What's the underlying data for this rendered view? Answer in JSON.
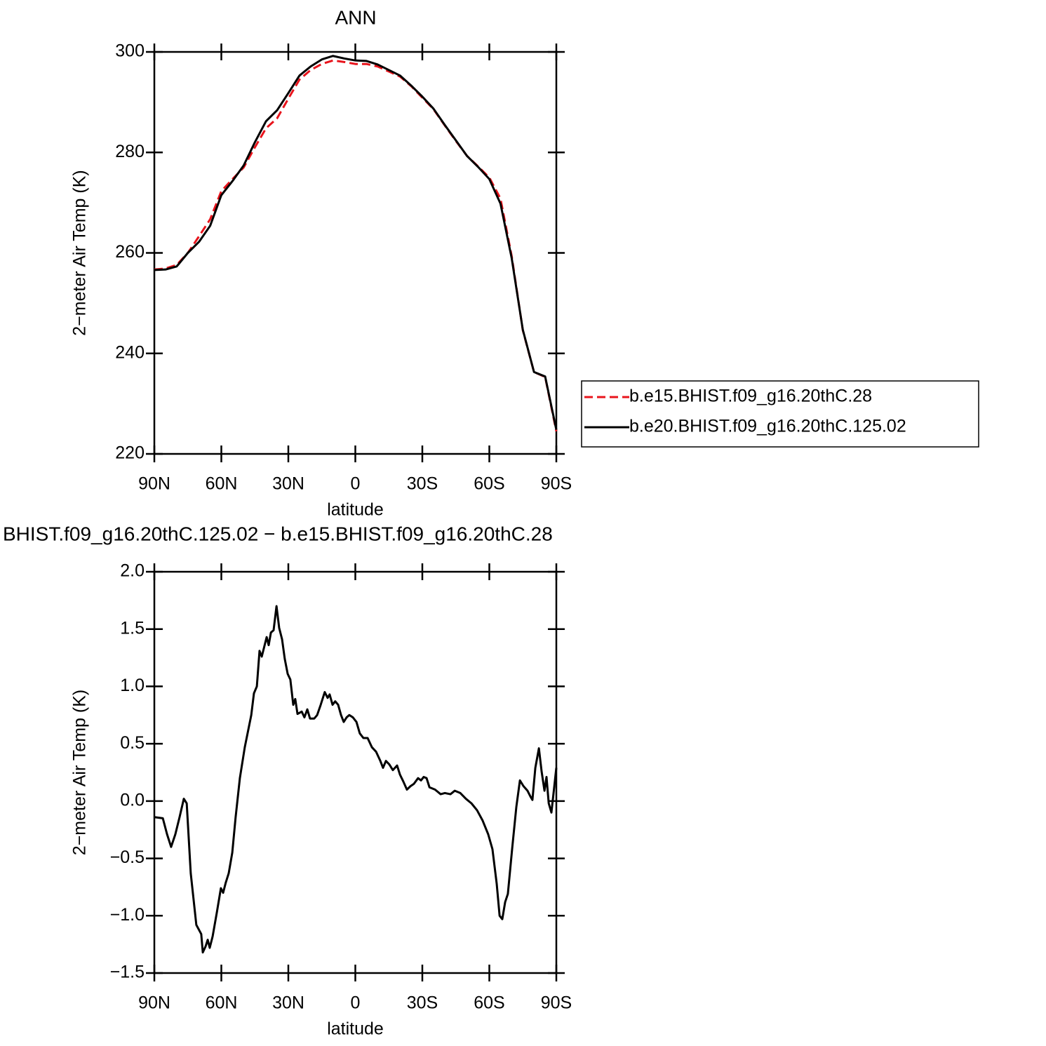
{
  "chart_data": [
    {
      "type": "line",
      "title": "ANN",
      "xlabel": "latitude",
      "ylabel": "2−meter Air Temp (K)",
      "x": [
        90,
        85,
        80,
        75,
        70,
        65,
        60,
        55,
        50,
        45,
        40,
        35,
        30,
        25,
        20,
        15,
        10,
        5,
        0,
        -5,
        -10,
        -15,
        -20,
        -25,
        -30,
        -35,
        -40,
        -45,
        -50,
        -55,
        -60,
        -65,
        -70,
        -75,
        -80,
        -85,
        -90
      ],
      "series": [
        {
          "name": "b.e15.BHIST.f09_g16.20thC.28",
          "color": "#e8141c",
          "dash": true,
          "values": [
            256.7,
            256.9,
            257.6,
            260.0,
            263.3,
            266.7,
            272.3,
            274.7,
            277.0,
            281.0,
            284.8,
            286.8,
            290.7,
            294.5,
            296.4,
            297.6,
            298.3,
            298.0,
            297.6,
            297.6,
            297.1,
            296.1,
            295.1,
            293.2,
            290.9,
            288.6,
            285.4,
            282.3,
            279.3,
            277.2,
            275.0,
            270.8,
            259.4,
            244.6,
            236.3,
            235.3,
            224.5
          ]
        },
        {
          "name": "b.e20.BHIST.f09_g16.20thC.125.02",
          "color": "#000000",
          "dash": false,
          "values": [
            256.6,
            256.7,
            257.3,
            260.0,
            262.2,
            265.4,
            271.5,
            274.3,
            277.4,
            282.0,
            286.2,
            288.4,
            291.8,
            295.3,
            297.1,
            298.5,
            299.2,
            298.7,
            298.3,
            298.2,
            297.5,
            296.4,
            295.3,
            293.3,
            291.1,
            288.7,
            285.5,
            282.4,
            279.3,
            277.1,
            274.7,
            269.8,
            259.0,
            244.7,
            236.3,
            235.4,
            224.8
          ]
        }
      ],
      "xlim": [
        90,
        -90
      ],
      "xticks": [
        {
          "value": 90,
          "label": "90N"
        },
        {
          "value": 60,
          "label": "60N"
        },
        {
          "value": 30,
          "label": "30N"
        },
        0,
        {
          "value": -30,
          "label": "30S"
        },
        {
          "value": -60,
          "label": "60S"
        },
        {
          "value": -90,
          "label": "90S"
        }
      ],
      "ylim": [
        220,
        300
      ],
      "yticks": [
        220,
        240,
        260,
        280,
        300
      ],
      "legend": "right"
    },
    {
      "type": "line",
      "title": "BHIST.f09_g16.20thC.125.02 − b.e15.BHIST.f09_g16.20thC.28",
      "xlabel": "latitude",
      "ylabel": "2−meter Air Temp (K)",
      "x": [
        90,
        86.2,
        84.3,
        82.5,
        80.6,
        78.7,
        76.8,
        75.5,
        73.7,
        71.2,
        69,
        68.3,
        67.1,
        66.1,
        65.2,
        63.9,
        62,
        60.2,
        59.2,
        58,
        56.7,
        55.1,
        53.6,
        51.7,
        49.5,
        46.6,
        45.4,
        44.1,
        42.9,
        41.9,
        39.7,
        38.8,
        37.8,
        36.6,
        35.3,
        34.1,
        32.8,
        31.6,
        30.3,
        29.1,
        27.8,
        26.9,
        25.9,
        24,
        22.8,
        21.5,
        20.3,
        18.4,
        17.1,
        15.5,
        13.7,
        12.4,
        11.5,
        10.2,
        9,
        7.7,
        6.4,
        5.2,
        3.9,
        2.7,
        1.1,
        -0.5,
        -2,
        -3.6,
        -5.5,
        -7.4,
        -9.3,
        -11.2,
        -12.4,
        -13.7,
        -15.2,
        -16.8,
        -18.7,
        -20,
        -21.5,
        -23.1,
        -24.7,
        -26.2,
        -28.1,
        -29.4,
        -30.6,
        -31.9,
        -33.2,
        -35.7,
        -38.2,
        -40.1,
        -42.6,
        -44.5,
        -47,
        -49.5,
        -52,
        -54.5,
        -57,
        -59.5,
        -61.4,
        -63.3,
        -64.6,
        -65.8,
        -67.1,
        -68.3,
        -70.2,
        -72.1,
        -73.7,
        -75.3,
        -77.1,
        -78.4,
        -79.3,
        -80.6,
        -82.2,
        -83.4,
        -84.7,
        -85.6,
        -86.6,
        -87.8,
        -89.1,
        -90
      ],
      "values": [
        -0.14,
        -0.15,
        -0.29,
        -0.4,
        -0.29,
        -0.14,
        0.02,
        -0.02,
        -0.63,
        -1.08,
        -1.16,
        -1.32,
        -1.27,
        -1.21,
        -1.28,
        -1.18,
        -0.97,
        -0.76,
        -0.8,
        -0.71,
        -0.63,
        -0.45,
        -0.14,
        0.2,
        0.47,
        0.75,
        0.94,
        1.0,
        1.31,
        1.26,
        1.43,
        1.36,
        1.47,
        1.49,
        1.7,
        1.51,
        1.41,
        1.24,
        1.11,
        1.06,
        0.84,
        0.89,
        0.76,
        0.78,
        0.73,
        0.8,
        0.72,
        0.72,
        0.75,
        0.84,
        0.95,
        0.9,
        0.93,
        0.84,
        0.87,
        0.84,
        0.75,
        0.69,
        0.73,
        0.75,
        0.73,
        0.69,
        0.59,
        0.55,
        0.55,
        0.47,
        0.43,
        0.35,
        0.29,
        0.35,
        0.32,
        0.27,
        0.31,
        0.23,
        0.17,
        0.1,
        0.13,
        0.15,
        0.2,
        0.18,
        0.21,
        0.2,
        0.12,
        0.1,
        0.06,
        0.07,
        0.06,
        0.09,
        0.07,
        0.02,
        -0.02,
        -0.08,
        -0.17,
        -0.29,
        -0.42,
        -0.72,
        -1.0,
        -1.03,
        -0.88,
        -0.81,
        -0.42,
        -0.05,
        0.18,
        0.13,
        0.09,
        0.04,
        0.01,
        0.29,
        0.46,
        0.26,
        0.09,
        0.21,
        -0.02,
        -0.1,
        0.13,
        0.29
      ],
      "color": "#000000",
      "xlim": [
        90,
        -90
      ],
      "xticks": [
        {
          "value": 90,
          "label": "90N"
        },
        {
          "value": 60,
          "label": "60N"
        },
        {
          "value": 30,
          "label": "30N"
        },
        0,
        {
          "value": -30,
          "label": "30S"
        },
        {
          "value": -60,
          "label": "60S"
        },
        {
          "value": -90,
          "label": "90S"
        }
      ],
      "ylim": [
        -1.5,
        2
      ],
      "yticks": [
        {
          "value": -1.5,
          "label": "−1.5"
        },
        {
          "value": -1,
          "label": "−1.0"
        },
        {
          "value": -0.5,
          "label": "−0.5"
        },
        {
          "value": 0,
          "label": "0.0"
        },
        {
          "value": 0.5,
          "label": "0.5"
        },
        {
          "value": 1,
          "label": "1.0"
        },
        {
          "value": 1.5,
          "label": "1.5"
        },
        {
          "value": 2,
          "label": "2.0"
        }
      ]
    }
  ]
}
